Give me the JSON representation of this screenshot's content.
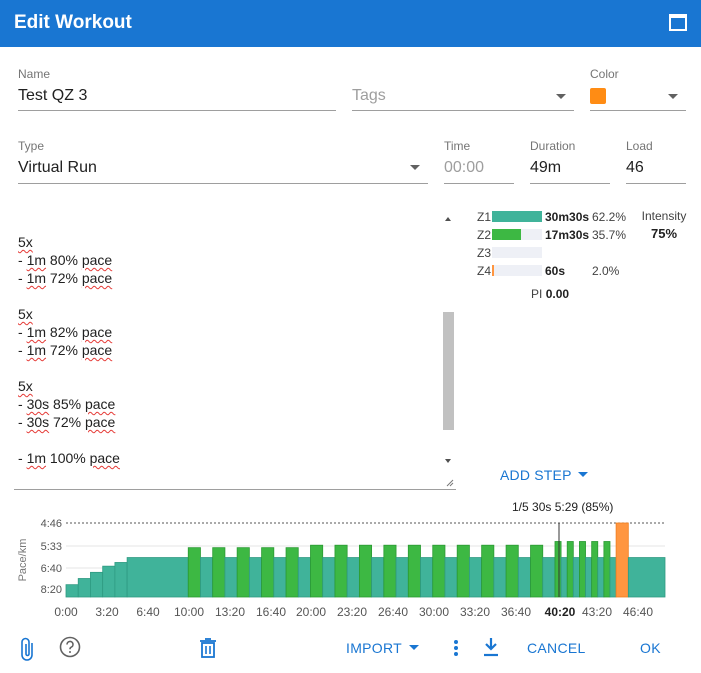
{
  "dialog": {
    "title": "Edit Workout"
  },
  "form": {
    "name": {
      "label": "Name",
      "value": "Test QZ 3"
    },
    "tags": {
      "placeholder": "Tags"
    },
    "color": {
      "label": "Color",
      "value": "#ff8c14"
    },
    "type": {
      "label": "Type",
      "value": "Virtual Run"
    },
    "time": {
      "label": "Time",
      "placeholder": "00:00"
    },
    "duration": {
      "label": "Duration",
      "value": "49m"
    },
    "load": {
      "label": "Load",
      "value": "46"
    }
  },
  "editor": {
    "lines": [
      "5x",
      "- 1m 80% pace",
      "- 1m 72% pace",
      "",
      "5x",
      "- 1m 82% pace",
      "- 1m 72% pace",
      "",
      "5x",
      "- 30s 85% pace",
      "- 30s 72% pace",
      "",
      "- 1m 100% pace"
    ]
  },
  "zones": [
    {
      "name": "Z1",
      "time": "30m30s",
      "percent": "62.2%",
      "fill": 1.0,
      "color": "#40b39a"
    },
    {
      "name": "Z2",
      "time": "17m30s",
      "percent": "35.7%",
      "fill": 0.574,
      "color": "#3db843"
    },
    {
      "name": "Z3",
      "time": "",
      "percent": "",
      "fill": 0,
      "color": "#e8c547"
    },
    {
      "name": "Z4",
      "time": "60s",
      "percent": "2.0%",
      "fill": 0.033,
      "color": "#ff9640"
    }
  ],
  "pi": {
    "label": "PI",
    "value": "0.00"
  },
  "intensity": {
    "label": "Intensity",
    "value": "75%"
  },
  "add_step": {
    "label": "ADD STEP"
  },
  "chart_info": "1/5 30s 5:29 (85%)",
  "chart_data": {
    "type": "bar",
    "ylabel": "Pace/km",
    "y_ticks": [
      "4:46",
      "5:33",
      "6:40",
      "8:20"
    ],
    "x_ticks": [
      "0:00",
      "3:20",
      "6:40",
      "10:00",
      "13:20",
      "16:40",
      "20:00",
      "23:20",
      "26:40",
      "30:00",
      "33:20",
      "36:40",
      "40:20",
      "43:20",
      "46:40"
    ],
    "highlight_x_tick": "40:20",
    "xlim_minutes": [
      0,
      49
    ],
    "marker_minute": 40.33,
    "steps": [
      {
        "start": 0.0,
        "end": 1.0,
        "pct": 50,
        "zone": "Z1"
      },
      {
        "start": 1.0,
        "end": 2.0,
        "pct": 55,
        "zone": "Z1"
      },
      {
        "start": 2.0,
        "end": 3.0,
        "pct": 60,
        "zone": "Z1"
      },
      {
        "start": 3.0,
        "end": 4.0,
        "pct": 65,
        "zone": "Z1"
      },
      {
        "start": 4.0,
        "end": 5.0,
        "pct": 68,
        "zone": "Z1"
      },
      {
        "start": 5.0,
        "end": 10.0,
        "pct": 72,
        "zone": "Z1"
      },
      {
        "start": 10.0,
        "end": 11.0,
        "pct": 80,
        "zone": "Z2"
      },
      {
        "start": 11.0,
        "end": 12.0,
        "pct": 72,
        "zone": "Z1"
      },
      {
        "start": 12.0,
        "end": 13.0,
        "pct": 80,
        "zone": "Z2"
      },
      {
        "start": 13.0,
        "end": 14.0,
        "pct": 72,
        "zone": "Z1"
      },
      {
        "start": 14.0,
        "end": 15.0,
        "pct": 80,
        "zone": "Z2"
      },
      {
        "start": 15.0,
        "end": 16.0,
        "pct": 72,
        "zone": "Z1"
      },
      {
        "start": 16.0,
        "end": 17.0,
        "pct": 80,
        "zone": "Z2"
      },
      {
        "start": 17.0,
        "end": 18.0,
        "pct": 72,
        "zone": "Z1"
      },
      {
        "start": 18.0,
        "end": 19.0,
        "pct": 80,
        "zone": "Z2"
      },
      {
        "start": 19.0,
        "end": 20.0,
        "pct": 72,
        "zone": "Z1"
      },
      {
        "start": 20.0,
        "end": 21.0,
        "pct": 82,
        "zone": "Z2"
      },
      {
        "start": 21.0,
        "end": 22.0,
        "pct": 72,
        "zone": "Z1"
      },
      {
        "start": 22.0,
        "end": 23.0,
        "pct": 82,
        "zone": "Z2"
      },
      {
        "start": 23.0,
        "end": 24.0,
        "pct": 72,
        "zone": "Z1"
      },
      {
        "start": 24.0,
        "end": 25.0,
        "pct": 82,
        "zone": "Z2"
      },
      {
        "start": 25.0,
        "end": 26.0,
        "pct": 72,
        "zone": "Z1"
      },
      {
        "start": 26.0,
        "end": 27.0,
        "pct": 82,
        "zone": "Z2"
      },
      {
        "start": 27.0,
        "end": 28.0,
        "pct": 72,
        "zone": "Z1"
      },
      {
        "start": 28.0,
        "end": 29.0,
        "pct": 82,
        "zone": "Z2"
      },
      {
        "start": 29.0,
        "end": 30.0,
        "pct": 72,
        "zone": "Z1"
      },
      {
        "start": 30.0,
        "end": 31.0,
        "pct": 82,
        "zone": "Z2"
      },
      {
        "start": 31.0,
        "end": 32.0,
        "pct": 72,
        "zone": "Z1"
      },
      {
        "start": 32.0,
        "end": 33.0,
        "pct": 82,
        "zone": "Z2"
      },
      {
        "start": 33.0,
        "end": 34.0,
        "pct": 72,
        "zone": "Z1"
      },
      {
        "start": 34.0,
        "end": 35.0,
        "pct": 82,
        "zone": "Z2"
      },
      {
        "start": 35.0,
        "end": 36.0,
        "pct": 72,
        "zone": "Z1"
      },
      {
        "start": 36.0,
        "end": 37.0,
        "pct": 82,
        "zone": "Z2"
      },
      {
        "start": 37.0,
        "end": 38.0,
        "pct": 72,
        "zone": "Z1"
      },
      {
        "start": 38.0,
        "end": 39.0,
        "pct": 82,
        "zone": "Z2"
      },
      {
        "start": 39.0,
        "end": 40.0,
        "pct": 72,
        "zone": "Z1"
      },
      {
        "start": 40.0,
        "end": 40.5,
        "pct": 85,
        "zone": "Z2"
      },
      {
        "start": 40.5,
        "end": 41.0,
        "pct": 72,
        "zone": "Z1"
      },
      {
        "start": 41.0,
        "end": 41.5,
        "pct": 85,
        "zone": "Z2"
      },
      {
        "start": 41.5,
        "end": 42.0,
        "pct": 72,
        "zone": "Z1"
      },
      {
        "start": 42.0,
        "end": 42.5,
        "pct": 85,
        "zone": "Z2"
      },
      {
        "start": 42.5,
        "end": 43.0,
        "pct": 72,
        "zone": "Z1"
      },
      {
        "start": 43.0,
        "end": 43.5,
        "pct": 85,
        "zone": "Z2"
      },
      {
        "start": 43.5,
        "end": 44.0,
        "pct": 72,
        "zone": "Z1"
      },
      {
        "start": 44.0,
        "end": 44.5,
        "pct": 85,
        "zone": "Z2"
      },
      {
        "start": 44.5,
        "end": 45.0,
        "pct": 72,
        "zone": "Z1"
      },
      {
        "start": 45.0,
        "end": 46.0,
        "pct": 100,
        "zone": "Z4"
      },
      {
        "start": 46.0,
        "end": 49.0,
        "pct": 72,
        "zone": "Z1"
      }
    ],
    "zone_colors": {
      "Z1": "#40b39a",
      "Z2": "#3db843",
      "Z4": "#ff9640"
    }
  },
  "footer": {
    "import_label": "IMPORT",
    "cancel_label": "CANCEL",
    "ok_label": "OK"
  },
  "colors": {
    "accent": "#1976d2"
  }
}
